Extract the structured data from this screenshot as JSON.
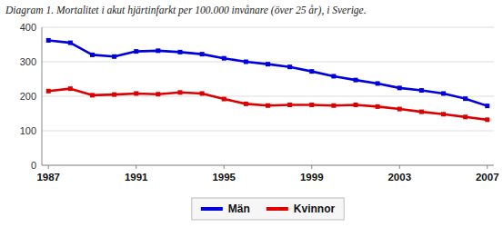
{
  "chart_data": {
    "type": "line",
    "title": "Diagram 1. Mortalitet i akut hjärtinfarkt per 100.000 invånare (över 25 år), i Sverige.",
    "x": [
      1987,
      1988,
      1989,
      1990,
      1991,
      1992,
      1993,
      1994,
      1995,
      1996,
      1997,
      1998,
      1999,
      2000,
      2001,
      2002,
      2003,
      2004,
      2005,
      2006,
      2007
    ],
    "series": [
      {
        "name": "Män",
        "color": "#0000dd",
        "marker": "square",
        "values": [
          362,
          355,
          320,
          315,
          330,
          332,
          328,
          322,
          310,
          300,
          293,
          285,
          272,
          258,
          247,
          237,
          224,
          217,
          208,
          193,
          172
        ]
      },
      {
        "name": "Kvinnor",
        "color": "#dd0000",
        "marker": "square",
        "values": [
          215,
          222,
          203,
          205,
          208,
          206,
          211,
          208,
          192,
          178,
          173,
          175,
          175,
          173,
          175,
          170,
          163,
          155,
          148,
          140,
          132
        ]
      }
    ],
    "xlim": [
      1986.7,
      2007.3
    ],
    "xticks": [
      1987,
      1991,
      1995,
      1999,
      2003,
      2007
    ],
    "ylim": [
      0,
      400
    ],
    "yticks": [
      0,
      100,
      200,
      300,
      400
    ],
    "grid": true,
    "legend": "bottom"
  }
}
